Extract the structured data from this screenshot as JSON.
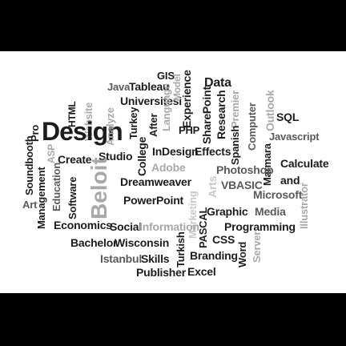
{
  "colors": {
    "band": "#000000",
    "background": "#ffffff",
    "dark": "#1c1c1c",
    "mid": "#5a5a5a",
    "light": "#a8a8a8",
    "pale": "#c8c8c8"
  },
  "words": {
    "design": "Design",
    "beloit": "Beloit",
    "gis": "GIS",
    "tableau": "Tableau",
    "java": "Java",
    "universitesi": "Universitesi",
    "html": "HTML",
    "website": "Website",
    "pro": "Pro",
    "asp": "ASP",
    "analyze": "Analyze",
    "turkey": "Turkey",
    "after": "After",
    "language": "Language",
    "model": "Model",
    "experience": "Experience",
    "php": "PHP",
    "data": "Data",
    "sharepoint": "SharePoint",
    "research": "Research",
    "premier": "Premier",
    "spanish": "Spanish",
    "computer": "Computer",
    "outlook": "Outlook",
    "sql": "SQL",
    "javascript": "Javascript",
    "soundbooth": "Soundbooth",
    "create": "Create",
    "studio": "Studio",
    "college": "College",
    "indesign": "InDesign",
    "effects": "Effects",
    "adobe": "Adobe",
    "marmara": "Marmara",
    "calculate": "Calculate",
    "education": "Education",
    "software": "Software",
    "dreamweaver": "Dreamweaver",
    "photoshop": "Photoshop",
    "and": "and",
    "art": "Art",
    "management": "Management",
    "powerpoint": "PowerPoint",
    "arts": "Arts",
    "vbasic": "VBASIC",
    "microsoft": "Microsoft",
    "marketing": "Marketing",
    "graphic": "Graphic",
    "media": "Media",
    "illustrator": "Illustrator",
    "economics": "Economics",
    "social": "Social",
    "information": "Information",
    "pascal": "PASCAL",
    "programming": "Programming",
    "bachelor": "Bachelor",
    "wisconsin": "Wisconsin",
    "css": "CSS",
    "server": "Server",
    "word": "Word",
    "turkish": "Turkish",
    "istanbul": "Istanbul",
    "skills": "Skills",
    "branding": "Branding",
    "publisher": "Publisher",
    "excel": "Excel"
  }
}
